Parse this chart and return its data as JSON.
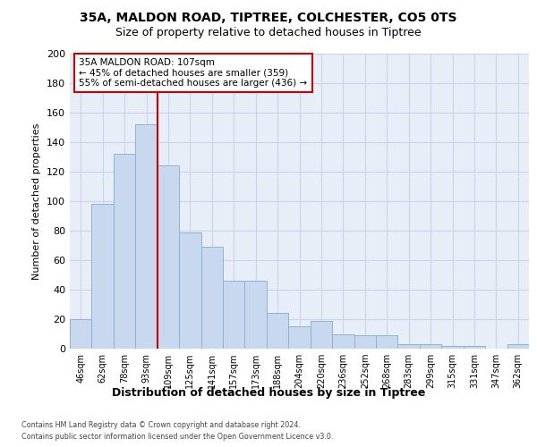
{
  "title1": "35A, MALDON ROAD, TIPTREE, COLCHESTER, CO5 0TS",
  "title2": "Size of property relative to detached houses in Tiptree",
  "xlabel": "Distribution of detached houses by size in Tiptree",
  "ylabel": "Number of detached properties",
  "categories": [
    "46sqm",
    "62sqm",
    "78sqm",
    "93sqm",
    "109sqm",
    "125sqm",
    "141sqm",
    "157sqm",
    "173sqm",
    "188sqm",
    "204sqm",
    "220sqm",
    "236sqm",
    "252sqm",
    "268sqm",
    "283sqm",
    "299sqm",
    "315sqm",
    "331sqm",
    "347sqm",
    "362sqm"
  ],
  "values": [
    20,
    98,
    132,
    152,
    124,
    79,
    69,
    46,
    46,
    24,
    15,
    19,
    10,
    9,
    9,
    3,
    3,
    2,
    2,
    0,
    3
  ],
  "bar_color": "#c8d8ee",
  "bar_edge_color": "#8ab4d8",
  "grid_color": "#c8d4e8",
  "background_color": "#e8eef8",
  "fig_background": "#ffffff",
  "vline_color": "#cc0000",
  "vline_x": 3.5,
  "annotation_line1": "35A MALDON ROAD: 107sqm",
  "annotation_line2": "← 45% of detached houses are smaller (359)",
  "annotation_line3": "55% of semi-detached houses are larger (436) →",
  "annotation_box_facecolor": "#ffffff",
  "annotation_box_edgecolor": "#cc0000",
  "ylim": [
    0,
    200
  ],
  "yticks": [
    0,
    20,
    40,
    60,
    80,
    100,
    120,
    140,
    160,
    180,
    200
  ],
  "footer_line1": "Contains HM Land Registry data © Crown copyright and database right 2024.",
  "footer_line2": "Contains public sector information licensed under the Open Government Licence v3.0."
}
